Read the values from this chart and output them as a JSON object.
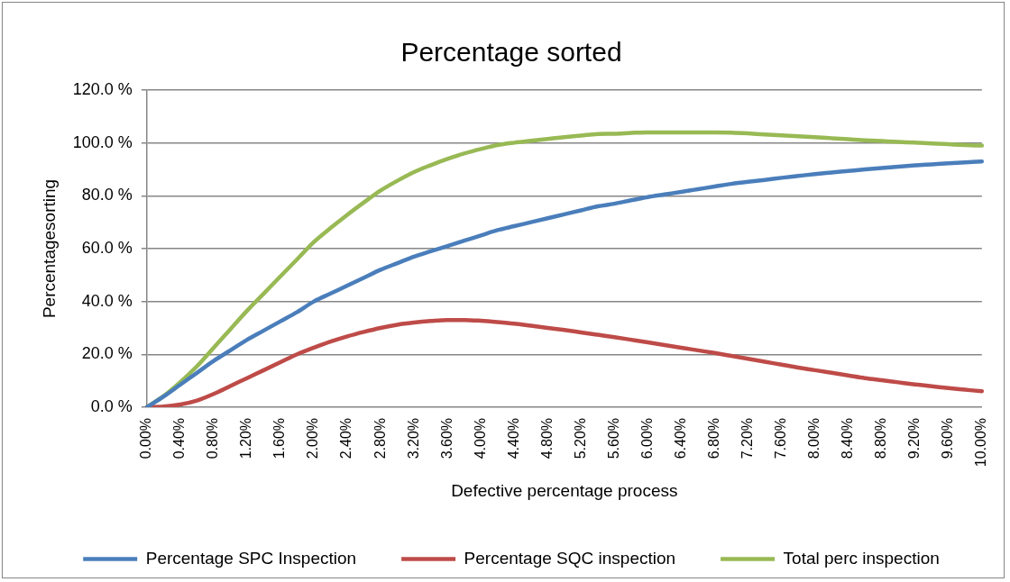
{
  "chart_data": {
    "type": "line",
    "title": "Percentage sorted",
    "xlabel": "Defective percentage process",
    "ylabel": "Percentagesorting",
    "categories": [
      "0.00%",
      null,
      "0.40%",
      null,
      "0.80%",
      null,
      "1.20%",
      null,
      "1.60%",
      null,
      "2.00%",
      null,
      "2.40%",
      null,
      "2.80%",
      null,
      "3.20%",
      null,
      "3.60%",
      null,
      "4.00%",
      null,
      "4.40%",
      null,
      "4.80%",
      null,
      "5.20%",
      null,
      "5.60%",
      null,
      "6.00%",
      null,
      "6.40%",
      null,
      "6.80%",
      null,
      "7.20%",
      null,
      "7.60%",
      null,
      "8.00%",
      null,
      "8.40%",
      null,
      "8.80%",
      null,
      "9.20%",
      null,
      "9.60%",
      null,
      "10.00%"
    ],
    "series": [
      {
        "name": "Percentage SPC Inspection",
        "color": "#4a7ebb",
        "values": [
          0,
          4,
          8.5,
          13,
          17.5,
          21.5,
          25.5,
          29,
          32.5,
          36,
          40,
          43,
          46,
          49,
          52,
          54.5,
          57,
          59,
          61,
          63,
          65,
          67,
          68.5,
          70,
          71.5,
          73,
          74.5,
          76,
          77,
          78.3,
          79.5,
          80.5,
          81.5,
          82.5,
          83.5,
          84.5,
          85.3,
          86,
          86.8,
          87.5,
          88.2,
          88.8,
          89.4,
          90,
          90.5,
          91,
          91.5,
          91.9,
          92.3,
          92.6,
          93
        ]
      },
      {
        "name": "Percentage SQC inspection",
        "color": "#be4b48",
        "values": [
          0,
          0.2,
          1,
          2.5,
          5,
          8,
          11,
          14,
          17,
          20,
          22.5,
          24.8,
          26.8,
          28.5,
          30,
          31.2,
          32,
          32.6,
          33,
          33,
          32.7,
          32.2,
          31.6,
          30.8,
          30,
          29.2,
          28.3,
          27.4,
          26.5,
          25.5,
          24.5,
          23.5,
          22.5,
          21.5,
          20.5,
          19.4,
          18.3,
          17.2,
          16.1,
          15,
          14,
          13,
          12,
          11,
          10.2,
          9.4,
          8.6,
          7.9,
          7.2,
          6.6,
          6
        ]
      },
      {
        "name": "Total perc inspection",
        "color": "#98b954",
        "values": [
          0,
          4.2,
          9.5,
          15.5,
          22.5,
          29.5,
          36.5,
          43,
          49.5,
          56,
          62.5,
          67.8,
          72.8,
          77.5,
          82,
          85.7,
          89,
          91.6,
          94,
          96,
          97.7,
          99.2,
          100.1,
          100.8,
          101.5,
          102.2,
          102.8,
          103.4,
          103.5,
          103.8,
          104,
          104,
          104,
          104,
          104,
          103.9,
          103.6,
          103.2,
          102.9,
          102.5,
          102.2,
          101.8,
          101.4,
          101,
          100.7,
          100.4,
          100.1,
          99.8,
          99.5,
          99.2,
          99
        ]
      }
    ],
    "ylim": [
      0,
      120
    ],
    "yticks": [
      {
        "value": 0,
        "label": "0.0 %"
      },
      {
        "value": 20,
        "label": "20.0 %"
      },
      {
        "value": 40,
        "label": "40.0 %"
      },
      {
        "value": 60,
        "label": "60.0 %"
      },
      {
        "value": 80,
        "label": "80.0 %"
      },
      {
        "value": 100,
        "label": "100.0 %"
      },
      {
        "value": 120,
        "label": "120.0 %"
      }
    ],
    "grid": "y",
    "legend": "bottom",
    "marker": "none",
    "line_style": "solid"
  }
}
